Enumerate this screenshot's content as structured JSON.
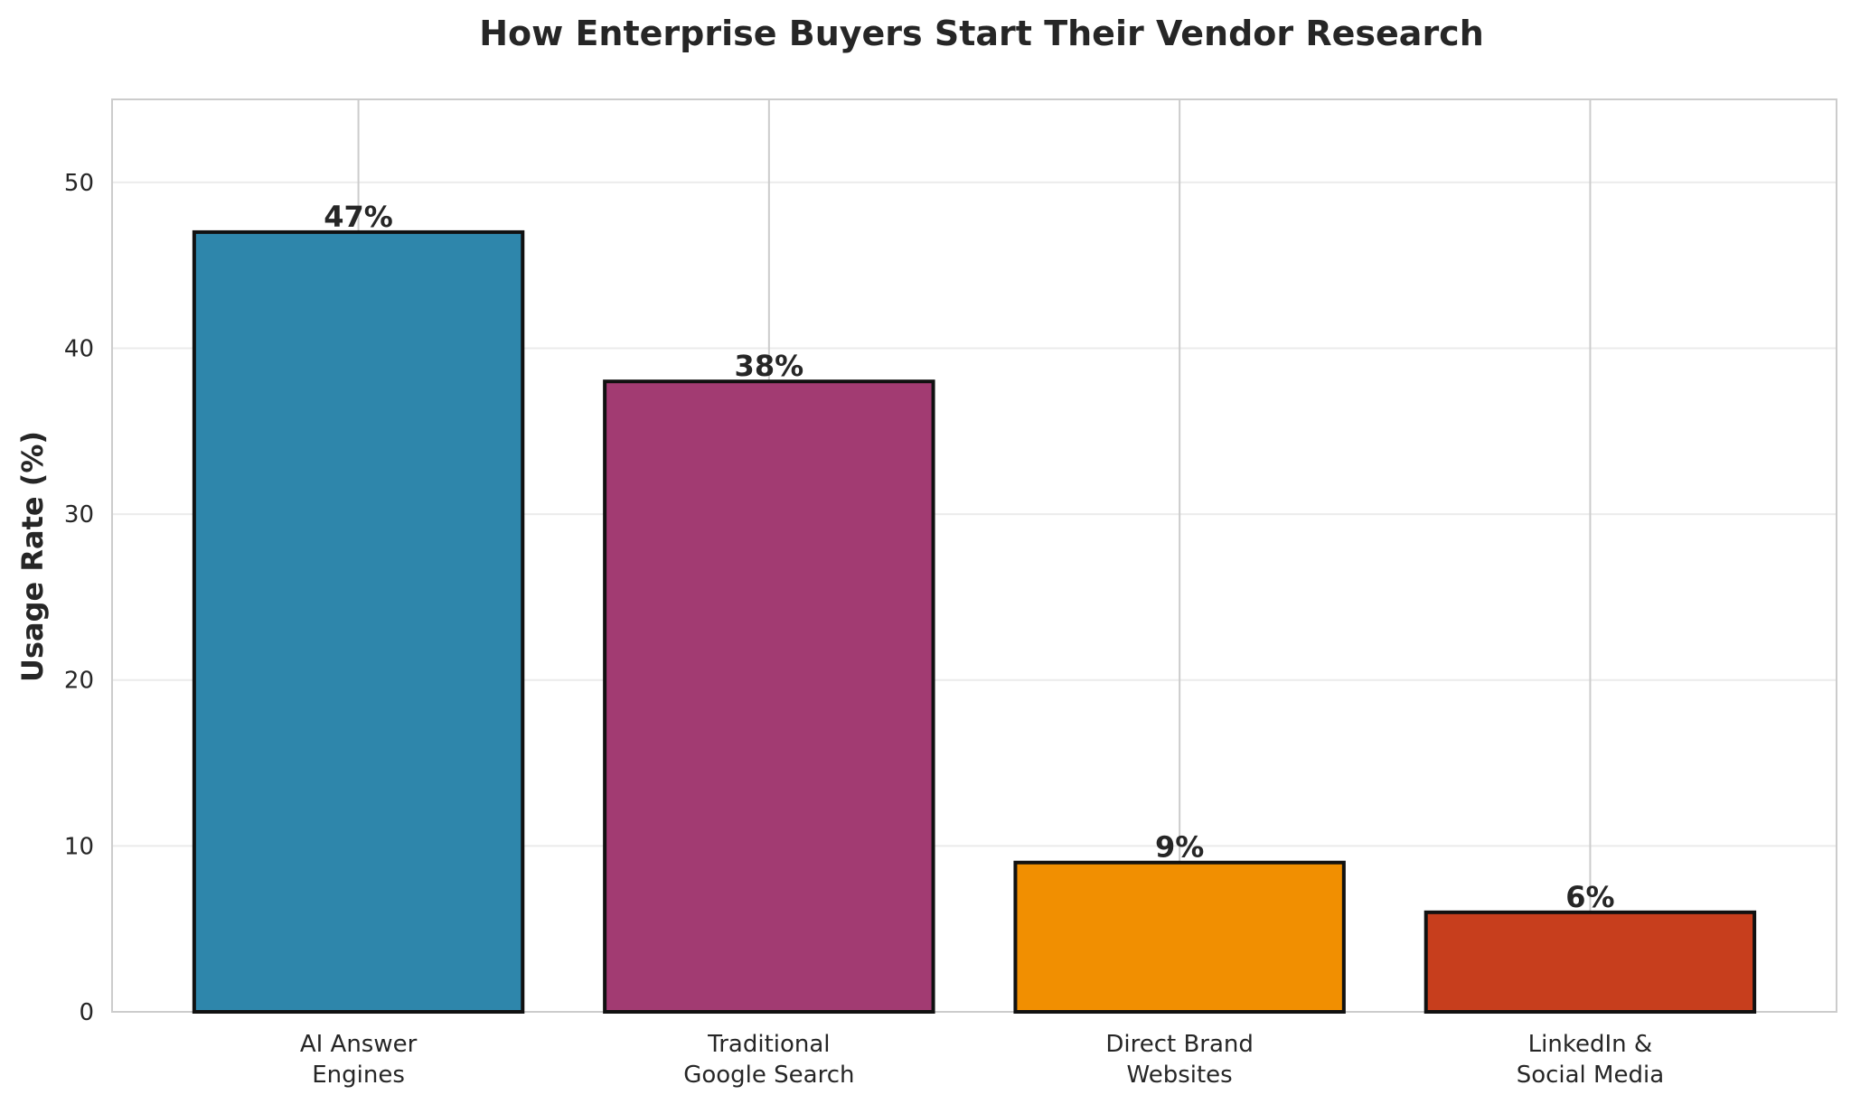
{
  "chart_data": {
    "type": "bar",
    "title": "How Enterprise Buyers Start Their Vendor Research",
    "xlabel": "",
    "ylabel": "Usage Rate (%)",
    "categories": [
      [
        "AI Answer",
        "Engines"
      ],
      [
        "Traditional",
        "Google Search"
      ],
      [
        "Direct Brand",
        "Websites"
      ],
      [
        "LinkedIn &",
        "Social Media"
      ]
    ],
    "values": [
      47,
      38,
      9,
      6
    ],
    "value_labels": [
      "47%",
      "38%",
      "9%",
      "6%"
    ],
    "colors": [
      "#2e86ab",
      "#a23b72",
      "#f18f01",
      "#c73e1d"
    ],
    "ylim": [
      0,
      55
    ],
    "yticks": [
      0,
      10,
      20,
      30,
      40,
      50
    ],
    "grid": true,
    "legend": "none"
  }
}
